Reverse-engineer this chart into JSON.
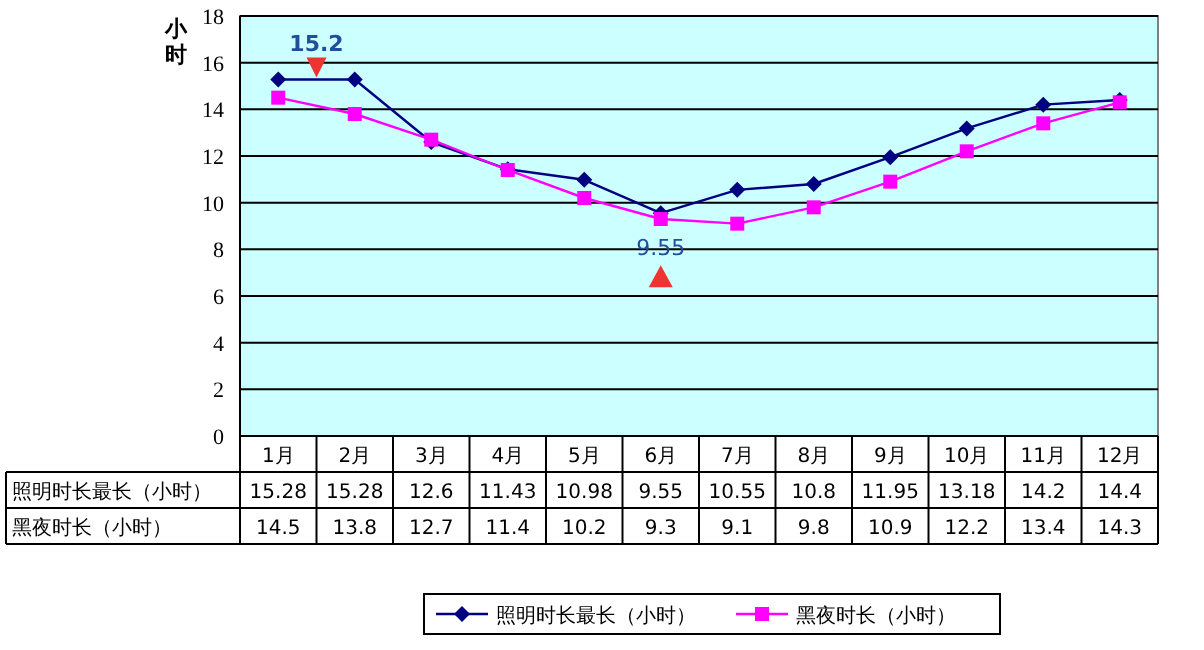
{
  "chart_data": {
    "type": "line",
    "ylabel": "小时",
    "categories": [
      "1月",
      "2月",
      "3月",
      "4月",
      "5月",
      "6月",
      "7月",
      "8月",
      "9月",
      "10月",
      "11月",
      "12月"
    ],
    "series": [
      {
        "name": "照明时长最长（小时）",
        "color": "#000080",
        "marker": "diamond",
        "values": [
          15.28,
          15.28,
          12.6,
          11.43,
          10.98,
          9.55,
          10.55,
          10.8,
          11.95,
          13.18,
          14.2,
          14.4
        ]
      },
      {
        "name": "黑夜时长（小时）",
        "color": "#ff00ff",
        "marker": "square",
        "values": [
          14.5,
          13.8,
          12.7,
          11.4,
          10.2,
          9.3,
          9.1,
          9.8,
          10.9,
          12.2,
          13.4,
          14.3
        ]
      }
    ],
    "ylim": [
      0,
      18
    ],
    "yticks": [
      0,
      2,
      4,
      6,
      8,
      10,
      12,
      14,
      16,
      18
    ],
    "grid": "y",
    "legend": "bottom",
    "data_labels": true,
    "annotations": [
      "15.2",
      "9.55"
    ]
  }
}
